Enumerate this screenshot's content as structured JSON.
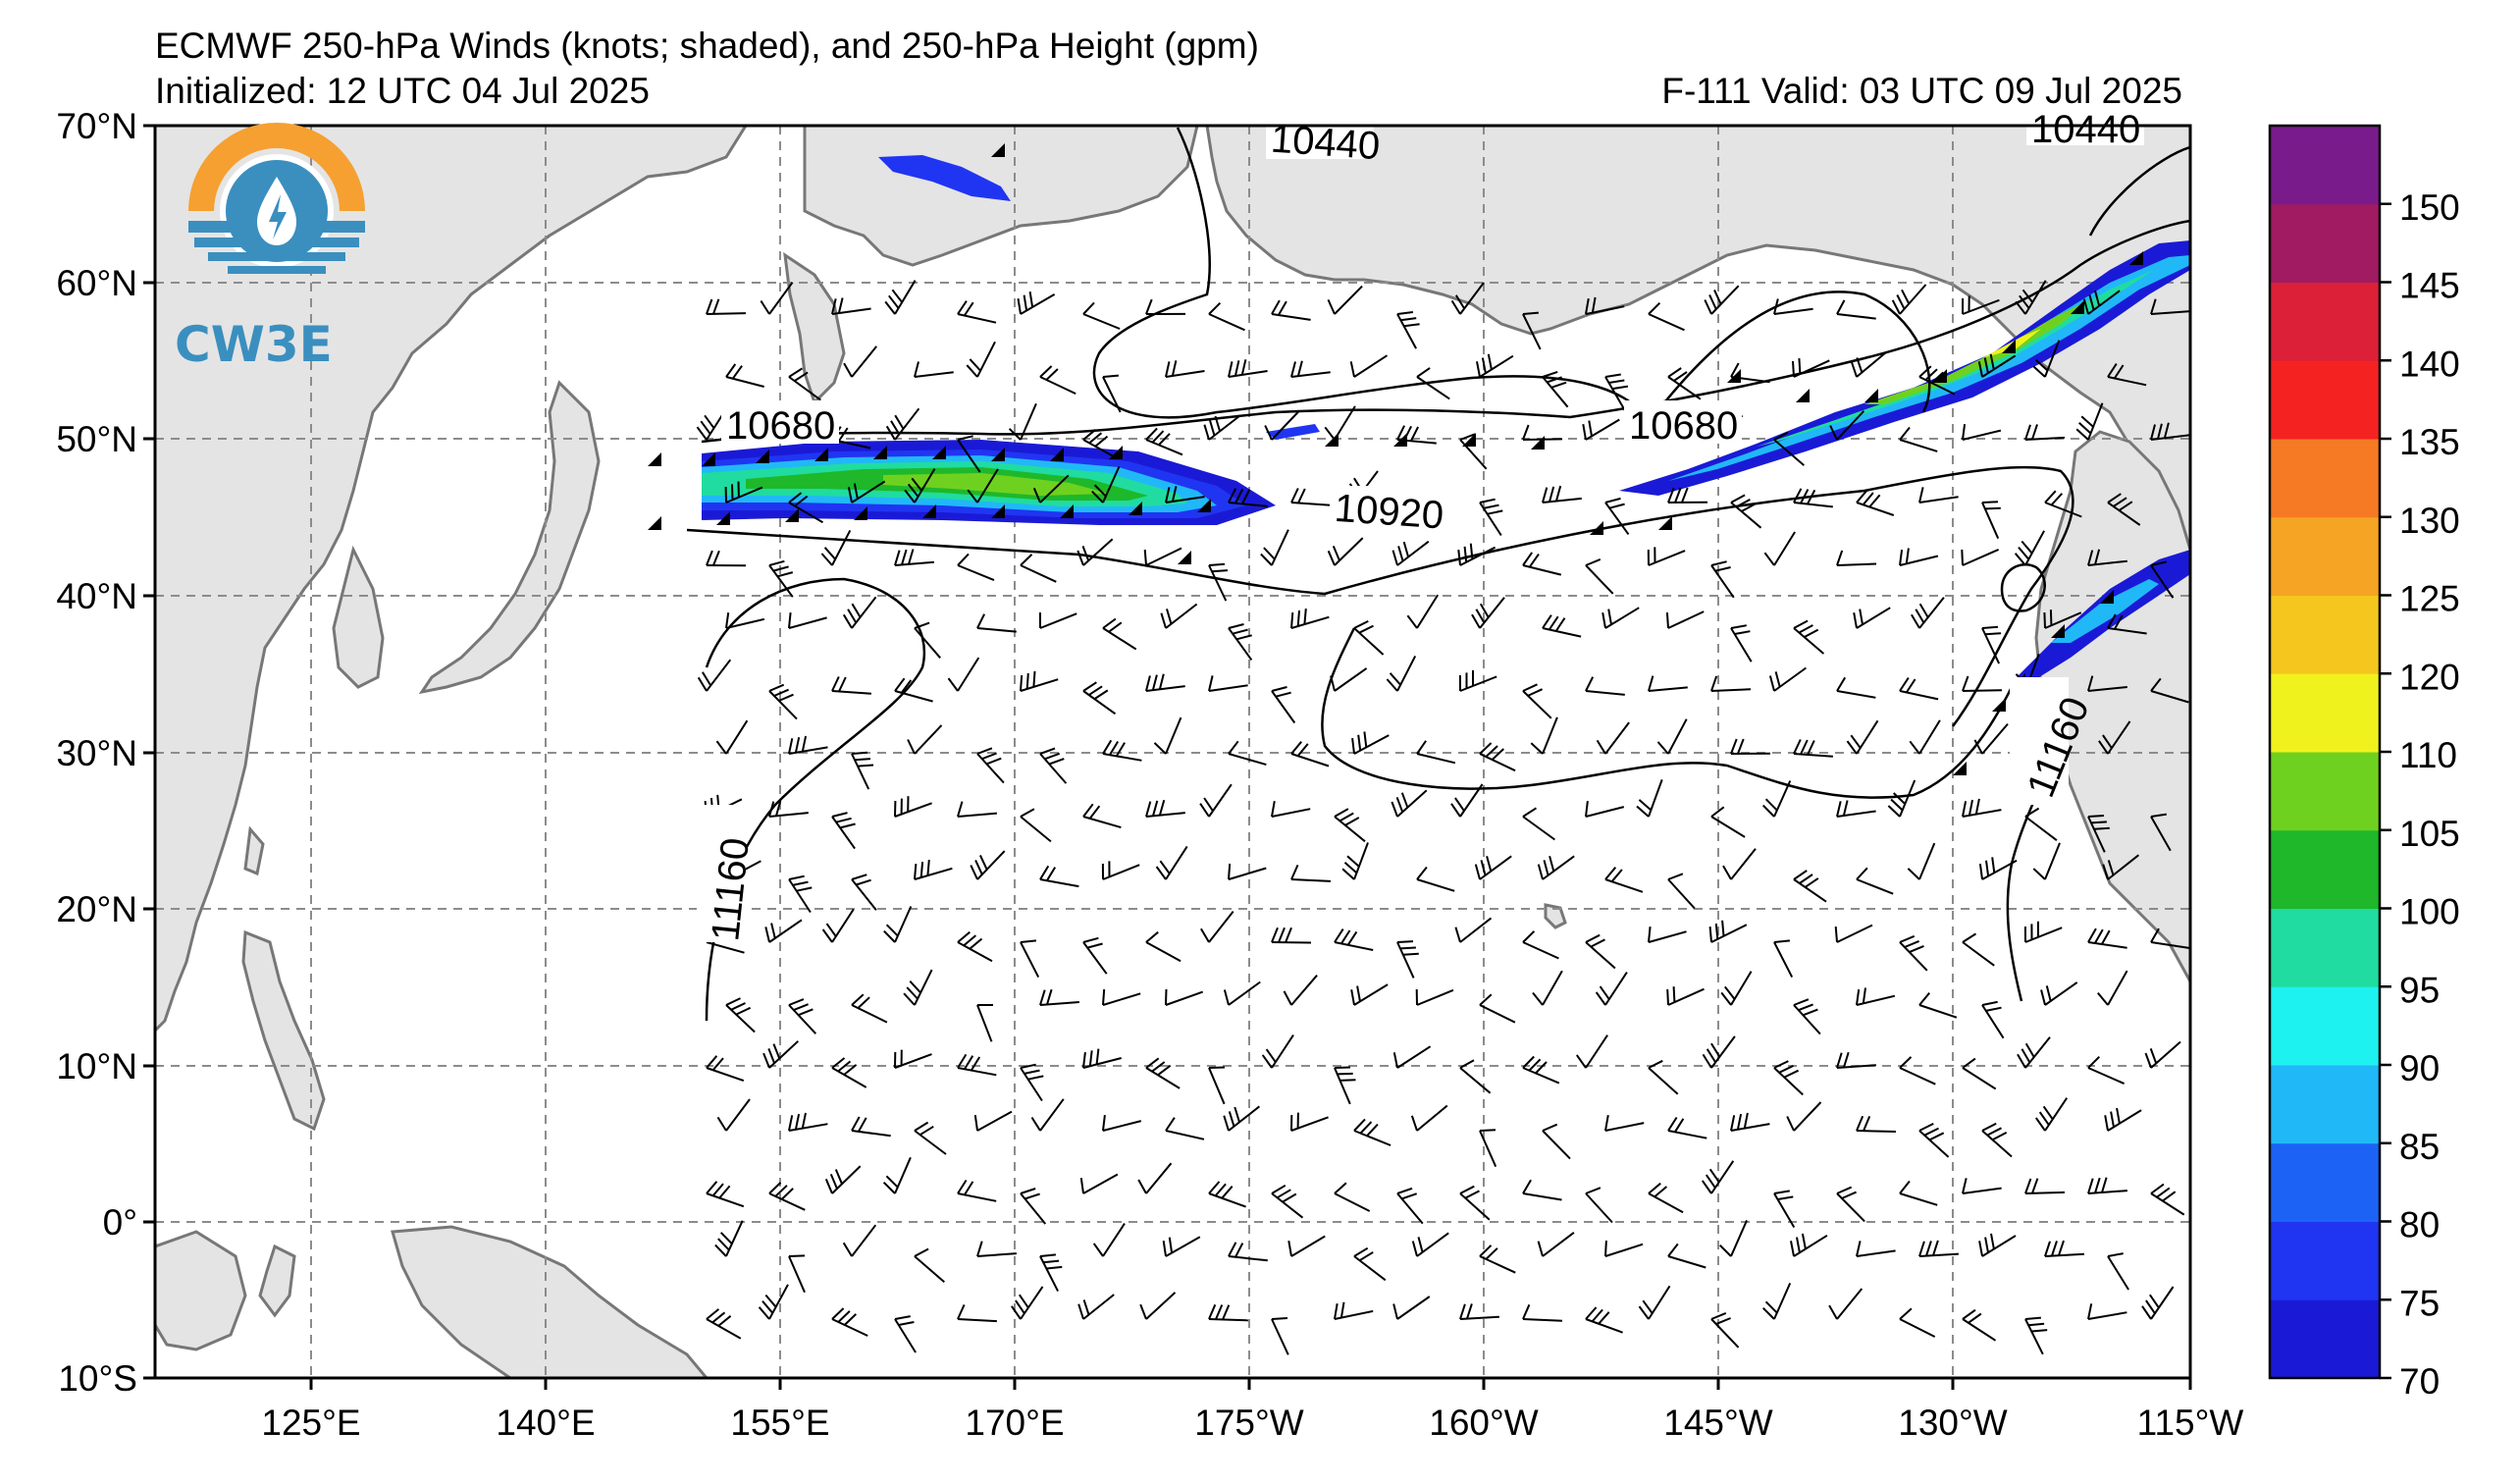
{
  "header": {
    "title": "ECMWF 250-hPa Winds (knots; shaded), and 250-hPa Height (gpm)",
    "initialized": "Initialized: 12 UTC 04 Jul 2025",
    "valid": "F-111  Valid: 03 UTC 09 Jul 2025"
  },
  "logo": {
    "text": "CW3E",
    "icon": "water-drop-lightning-icon"
  },
  "axes": {
    "lat_labels": [
      "70°N",
      "60°N",
      "50°N",
      "40°N",
      "30°N",
      "20°N",
      "10°N",
      "0°",
      "10°S"
    ],
    "lon_labels": [
      "125°E",
      "140°E",
      "155°E",
      "170°E",
      "175°W",
      "160°W",
      "145°W",
      "130°W",
      "115°W"
    ]
  },
  "contour_labels": [
    "10440",
    "10440",
    "10680",
    "10680",
    "10920",
    "11160",
    "11160"
  ],
  "colorbar": {
    "ticks": [
      "70",
      "75",
      "80",
      "85",
      "90",
      "95",
      "100",
      "105",
      "110",
      "120",
      "125",
      "130",
      "135",
      "140",
      "145",
      "150"
    ],
    "colors": [
      "#1a1ad6",
      "#2035f2",
      "#1c63f5",
      "#21b8f7",
      "#1ef2f0",
      "#20dca0",
      "#1eb82a",
      "#6fd11f",
      "#f0f21e",
      "#f5c61e",
      "#f5a523",
      "#f57a23",
      "#f52222",
      "#dc2038",
      "#a01b62",
      "#7a1b8c"
    ]
  },
  "colors": {
    "land": "#e4e4e4",
    "coast": "#777777",
    "grid": "#8c8c8c"
  }
}
